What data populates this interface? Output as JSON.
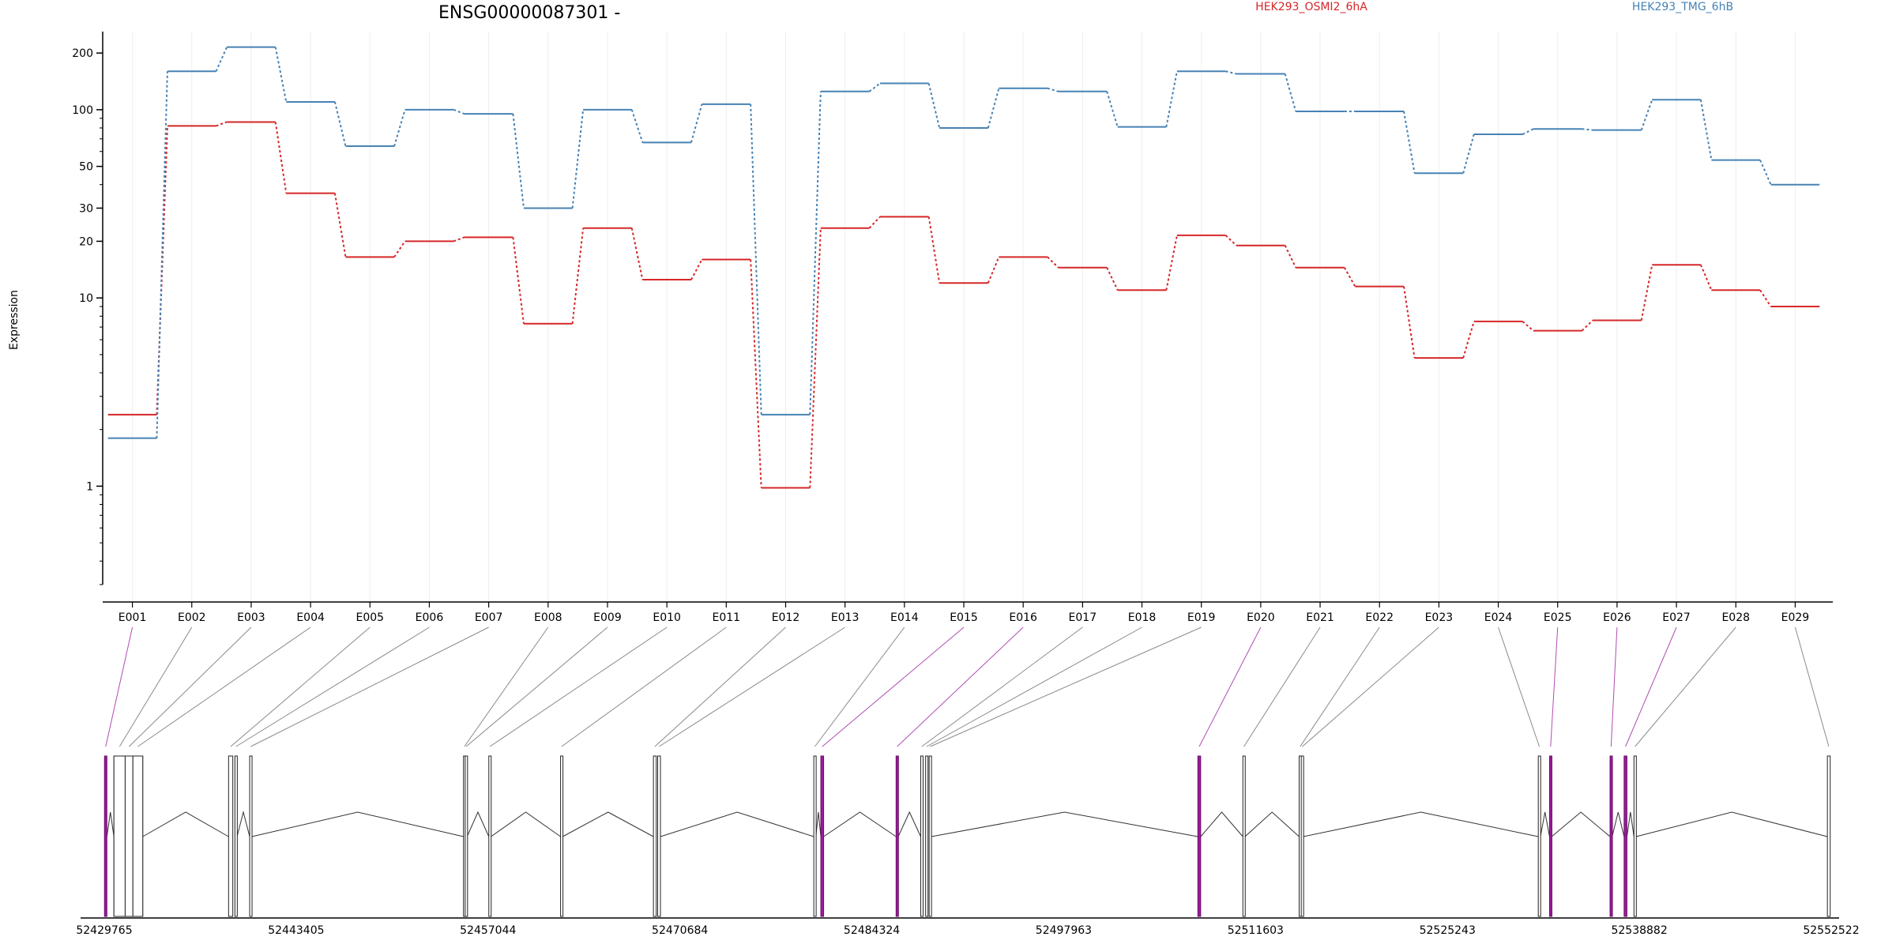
{
  "chart_data": {
    "type": "line",
    "title": "ENSG00000087301 -",
    "ylabel": "Expression",
    "yscale": "log",
    "ylim": [
      0.3,
      260
    ],
    "ytick_labels": [
      1,
      10,
      20,
      30,
      50,
      100,
      200
    ],
    "grid": "vertical",
    "legend_placement": "top",
    "categories": [
      "E001",
      "E002",
      "E003",
      "E004",
      "E005",
      "E006",
      "E007",
      "E008",
      "E009",
      "E010",
      "E011",
      "E012",
      "E013",
      "E014",
      "E015",
      "E016",
      "E017",
      "E018",
      "E019",
      "E020",
      "E021",
      "E022",
      "E023",
      "E024",
      "E025",
      "E026",
      "E027",
      "E028",
      "E029"
    ],
    "series": [
      {
        "name": "HEK293_OSMI2_6hA",
        "color": "#d62728",
        "values": [
          2.4,
          82,
          86,
          36,
          16.5,
          20,
          21,
          7.3,
          23.5,
          12.5,
          16,
          0.98,
          23.5,
          27,
          12,
          16.5,
          14.5,
          11,
          21.5,
          19,
          14.5,
          11.5,
          4.8,
          7.5,
          6.7,
          7.6,
          15,
          11,
          9
        ]
      },
      {
        "name": "HEK293_TMG_6hB",
        "color": "#4682b4",
        "values": [
          1.8,
          160,
          215,
          110,
          64,
          100,
          95,
          30,
          100,
          67,
          107,
          2.4,
          125,
          138,
          80,
          130,
          125,
          81,
          160,
          155,
          98,
          98,
          46,
          74,
          79,
          78,
          113,
          54,
          40
        ]
      }
    ],
    "genomic_axis": {
      "range": [
        52429765,
        52552522
      ],
      "tick_labels": [
        "52429765",
        "52443405",
        "52457044",
        "52470684",
        "52484324",
        "52497963",
        "52511603",
        "52525243",
        "52538882",
        "52552522"
      ],
      "exons": [
        {
          "id": "E001",
          "start": 52429780,
          "end": 52429950,
          "highlight": true
        },
        {
          "id": "E002",
          "start": 52430450,
          "end": 52431250,
          "highlight": false
        },
        {
          "id": "E003",
          "start": 52431250,
          "end": 52431800,
          "highlight": false
        },
        {
          "id": "E004",
          "start": 52431800,
          "end": 52432500,
          "highlight": false
        },
        {
          "id": "E005",
          "start": 52438600,
          "end": 52438900,
          "highlight": false
        },
        {
          "id": "E006",
          "start": 52439050,
          "end": 52439200,
          "highlight": false
        },
        {
          "id": "E007",
          "start": 52440100,
          "end": 52440250,
          "highlight": false
        },
        {
          "id": "E008",
          "start": 52455300,
          "end": 52455420,
          "highlight": false
        },
        {
          "id": "E009",
          "start": 52455420,
          "end": 52455550,
          "highlight": false
        },
        {
          "id": "E010",
          "start": 52457100,
          "end": 52457250,
          "highlight": false
        },
        {
          "id": "E011",
          "start": 52462200,
          "end": 52462350,
          "highlight": false
        },
        {
          "id": "E012",
          "start": 52468800,
          "end": 52469000,
          "highlight": false
        },
        {
          "id": "E013",
          "start": 52469100,
          "end": 52469300,
          "highlight": false
        },
        {
          "id": "E014",
          "start": 52480200,
          "end": 52480350,
          "highlight": false
        },
        {
          "id": "E015",
          "start": 52480700,
          "end": 52480900,
          "highlight": true
        },
        {
          "id": "E016",
          "start": 52486050,
          "end": 52486200,
          "highlight": true
        },
        {
          "id": "E017",
          "start": 52487800,
          "end": 52487950,
          "highlight": false
        },
        {
          "id": "E018",
          "start": 52488150,
          "end": 52488300,
          "highlight": false
        },
        {
          "id": "E019",
          "start": 52488400,
          "end": 52488550,
          "highlight": false
        },
        {
          "id": "E020",
          "start": 52507500,
          "end": 52507700,
          "highlight": true
        },
        {
          "id": "E021",
          "start": 52510700,
          "end": 52510850,
          "highlight": false
        },
        {
          "id": "E022",
          "start": 52514700,
          "end": 52514850,
          "highlight": false
        },
        {
          "id": "E023",
          "start": 52514850,
          "end": 52515000,
          "highlight": false
        },
        {
          "id": "E024",
          "start": 52531700,
          "end": 52531850,
          "highlight": false
        },
        {
          "id": "E025",
          "start": 52532500,
          "end": 52532650,
          "highlight": true
        },
        {
          "id": "E026",
          "start": 52536800,
          "end": 52536950,
          "highlight": true
        },
        {
          "id": "E027",
          "start": 52537800,
          "end": 52538000,
          "highlight": true
        },
        {
          "id": "E028",
          "start": 52538500,
          "end": 52538650,
          "highlight": false
        },
        {
          "id": "E029",
          "start": 52552250,
          "end": 52552450,
          "highlight": false
        }
      ]
    }
  }
}
